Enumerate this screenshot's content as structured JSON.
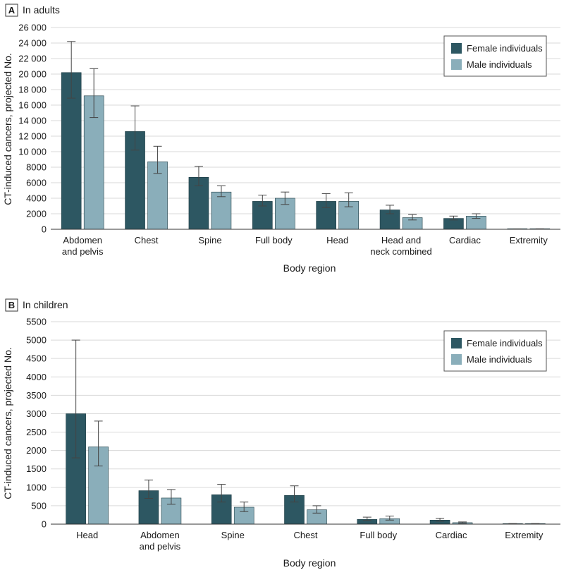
{
  "colors": {
    "female": "#2d5762",
    "male": "#8aaeba",
    "grid": "#d9d9d9",
    "axis": "#333333"
  },
  "chart_data": [
    {
      "type": "bar",
      "panel_letter": "A",
      "title": "In adults",
      "xlabel": "Body region",
      "ylabel": "CT-induced cancers, projected No.",
      "ylim": [
        0,
        26000
      ],
      "yticks": [
        0,
        2000,
        4000,
        6000,
        8000,
        10000,
        12000,
        14000,
        16000,
        18000,
        20000,
        22000,
        24000,
        26000
      ],
      "ytick_labels": [
        "0",
        "2000",
        "4000",
        "6000",
        "8000",
        "10 000",
        "12 000",
        "14 000",
        "16 000",
        "18 000",
        "20 000",
        "22 000",
        "24 000",
        "26 000"
      ],
      "grid": true,
      "legend": "top-right",
      "categories": [
        [
          "Abdomen",
          "and pelvis"
        ],
        [
          "Chest"
        ],
        [
          "Spine"
        ],
        [
          "Full body"
        ],
        [
          "Head"
        ],
        [
          "Head and",
          "neck combined"
        ],
        [
          "Cardiac"
        ],
        [
          "Extremity"
        ]
      ],
      "series": [
        {
          "name": "Female individuals",
          "values": [
            20200,
            12600,
            6700,
            3600,
            3600,
            2500,
            1400,
            40
          ],
          "err_low": [
            16900,
            10200,
            5600,
            3000,
            2800,
            2000,
            1200,
            30
          ],
          "err_high": [
            24200,
            15900,
            8100,
            4400,
            4600,
            3100,
            1700,
            50
          ]
        },
        {
          "name": "Male individuals",
          "values": [
            17200,
            8700,
            4800,
            4000,
            3600,
            1500,
            1700,
            50
          ],
          "err_low": [
            14400,
            7200,
            4200,
            3200,
            2900,
            1200,
            1400,
            40
          ],
          "err_high": [
            20700,
            10700,
            5600,
            4800,
            4700,
            1900,
            2000,
            60
          ]
        }
      ]
    },
    {
      "type": "bar",
      "panel_letter": "B",
      "title": "In children",
      "xlabel": "Body region",
      "ylabel": "CT-induced cancers, projected No.",
      "ylim": [
        0,
        5500
      ],
      "yticks": [
        0,
        500,
        1000,
        1500,
        2000,
        2500,
        3000,
        3500,
        4000,
        4500,
        5000,
        5500
      ],
      "ytick_labels": [
        "0",
        "500",
        "1000",
        "1500",
        "2000",
        "2500",
        "3000",
        "3500",
        "4000",
        "4500",
        "5000",
        "5500"
      ],
      "grid": true,
      "legend": "top-right",
      "categories": [
        [
          "Head"
        ],
        [
          "Abdomen",
          "and pelvis"
        ],
        [
          "Spine"
        ],
        [
          "Chest"
        ],
        [
          "Full body"
        ],
        [
          "Cardiac"
        ],
        [
          "Extremity"
        ]
      ],
      "series": [
        {
          "name": "Female individuals",
          "values": [
            3000,
            910,
            800,
            780,
            130,
            110,
            12
          ],
          "err_low": [
            1800,
            700,
            600,
            600,
            100,
            80,
            8
          ],
          "err_high": [
            5000,
            1200,
            1080,
            1040,
            190,
            160,
            16
          ]
        },
        {
          "name": "Male individuals",
          "values": [
            2100,
            710,
            460,
            390,
            150,
            40,
            12
          ],
          "err_low": [
            1580,
            540,
            340,
            300,
            110,
            25,
            8
          ],
          "err_high": [
            2800,
            940,
            600,
            500,
            220,
            60,
            16
          ]
        }
      ]
    }
  ]
}
